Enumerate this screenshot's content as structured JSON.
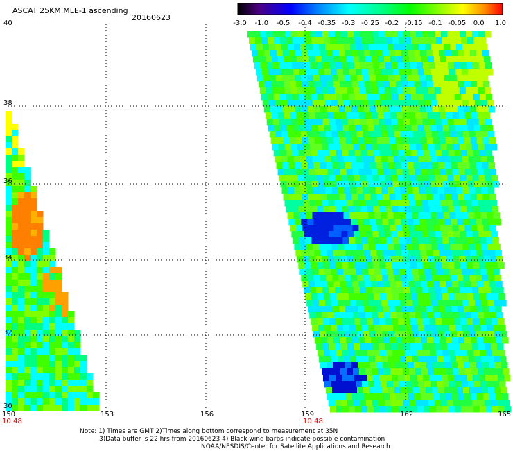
{
  "header": {
    "title": "ASCAT 25KM MLE-1 ascending",
    "date": "20160623"
  },
  "colorbar": {
    "labels": [
      "-3.0",
      "-1.0",
      "-0.5",
      "-0.4",
      "-0.35",
      "-0.3",
      "-0.25",
      "-0.2",
      "-0.15",
      "-0.1",
      "-0.05",
      "0.0",
      "1.0"
    ],
    "colors": [
      "#000000",
      "#5a00a0",
      "#0020e0",
      "#0070ff",
      "#00c0ff",
      "#00f0f0",
      "#00ff80",
      "#20ff20",
      "#80ff00",
      "#e0ff00",
      "#ffb000",
      "#ff6000",
      "#ff0000"
    ]
  },
  "axes": {
    "lat_labels": [
      "40",
      "38",
      "36",
      "34",
      "32",
      "30"
    ],
    "lon_labels": [
      "150",
      "153",
      "156",
      "159",
      "162",
      "165"
    ],
    "pass_times": [
      "10:48",
      "10:48"
    ]
  },
  "notes": [
    "Note: 1) Times are GMT 2)Times along bottom correspond to measurement at 35N",
    "3)Data buffer is 22 hrs from 20160623 4) Black wind barbs indicate possible contamination",
    "NOAA/NESDIS/Center for Satellite Applications and Research"
  ]
}
